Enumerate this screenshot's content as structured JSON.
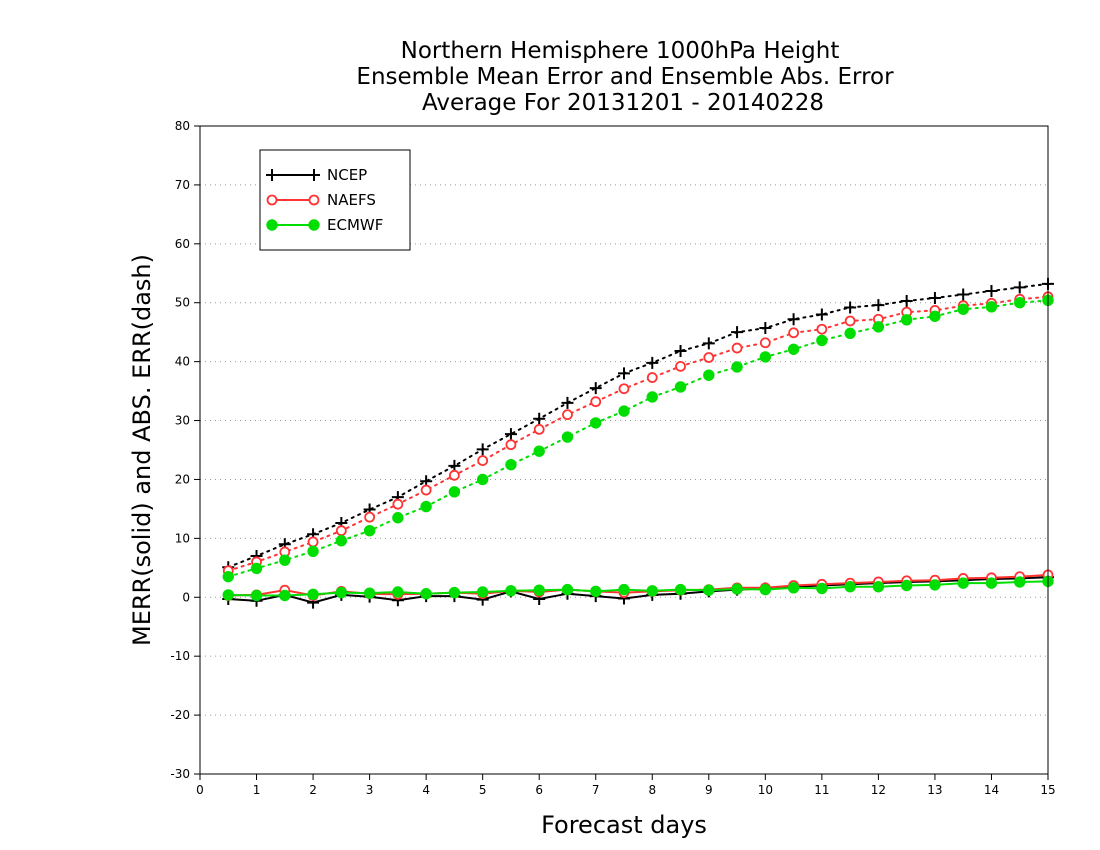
{
  "chart_data": {
    "type": "line",
    "title": [
      "Northern Hemisphere 1000hPa Height",
      "Ensemble Mean Error and Ensemble Abs. Error",
      "Average For 20131201 - 20140228"
    ],
    "xlabel": "Forecast days",
    "ylabel": "MERR(solid) and ABS. ERR(dash)",
    "xlim": [
      0,
      15
    ],
    "ylim": [
      -30,
      80
    ],
    "xticks": [
      "0",
      "1",
      "2",
      "3",
      "4",
      "5",
      "6",
      "7",
      "8",
      "9",
      "10",
      "11",
      "12",
      "13",
      "14",
      "15"
    ],
    "yticks": [
      "80",
      "70",
      "60",
      "50",
      "40",
      "30",
      "20",
      "10",
      "0",
      "-10",
      "-20",
      "-30"
    ],
    "x": [
      0.5,
      1,
      1.5,
      2,
      2.5,
      3,
      3.5,
      4,
      4.5,
      5,
      5.5,
      6,
      6.5,
      7,
      7.5,
      8,
      8.5,
      9,
      9.5,
      10,
      10.5,
      11,
      11.5,
      12,
      12.5,
      13,
      13.5,
      14,
      14.5,
      15
    ],
    "grid": true,
    "legend_position": "top-left",
    "series": [
      {
        "name": "NCEP",
        "color": "#000000",
        "marker": "plus",
        "mean_error": [
          -0.3,
          -0.6,
          0.4,
          -0.9,
          0.4,
          0.1,
          -0.5,
          0.2,
          0.2,
          -0.4,
          1.0,
          -0.3,
          0.6,
          0.2,
          -0.2,
          0.4,
          0.6,
          1.0,
          1.3,
          1.5,
          1.8,
          2.0,
          2.2,
          2.4,
          2.6,
          2.7,
          2.9,
          3.1,
          3.2,
          3.4
        ],
        "abs_error": [
          5.1,
          7.0,
          9.0,
          10.7,
          12.6,
          14.9,
          17.0,
          19.7,
          22.3,
          25.1,
          27.7,
          30.3,
          33.0,
          35.5,
          38.0,
          39.8,
          41.8,
          43.1,
          45.0,
          45.7,
          47.2,
          48.0,
          49.2,
          49.6,
          50.3,
          50.8,
          51.4,
          52.0,
          52.6,
          53.2
        ]
      },
      {
        "name": "NAEFS",
        "color": "#ff3333",
        "marker": "open-circle",
        "mean_error": [
          0.3,
          0.4,
          1.2,
          0.3,
          1.0,
          0.6,
          0.5,
          0.6,
          0.8,
          0.6,
          1.1,
          0.9,
          1.3,
          1.0,
          0.8,
          1.0,
          1.2,
          1.3,
          1.6,
          1.6,
          2.0,
          2.2,
          2.4,
          2.6,
          2.8,
          2.9,
          3.2,
          3.3,
          3.5,
          3.8
        ],
        "abs_error": [
          4.5,
          6.0,
          7.7,
          9.4,
          11.3,
          13.6,
          15.8,
          18.2,
          20.7,
          23.2,
          25.9,
          28.5,
          31.0,
          33.2,
          35.4,
          37.3,
          39.2,
          40.7,
          42.3,
          43.2,
          44.9,
          45.5,
          46.9,
          47.2,
          48.4,
          48.7,
          49.5,
          49.9,
          50.6,
          51.0
        ]
      },
      {
        "name": "ECMWF",
        "color": "#00dd00",
        "marker": "filled-circle",
        "mean_error": [
          0.4,
          0.3,
          0.3,
          0.5,
          0.8,
          0.7,
          0.9,
          0.6,
          0.8,
          0.9,
          1.1,
          1.2,
          1.3,
          1.0,
          1.3,
          1.1,
          1.3,
          1.2,
          1.4,
          1.3,
          1.6,
          1.5,
          1.8,
          1.8,
          2.0,
          2.1,
          2.4,
          2.4,
          2.6,
          2.7
        ],
        "abs_error": [
          3.5,
          4.9,
          6.3,
          7.8,
          9.6,
          11.3,
          13.5,
          15.4,
          17.9,
          20.0,
          22.5,
          24.8,
          27.2,
          29.6,
          31.6,
          34.0,
          35.7,
          37.7,
          39.1,
          40.8,
          42.1,
          43.6,
          44.8,
          45.9,
          47.1,
          47.7,
          48.9,
          49.3,
          50.0,
          50.4
        ]
      }
    ]
  }
}
